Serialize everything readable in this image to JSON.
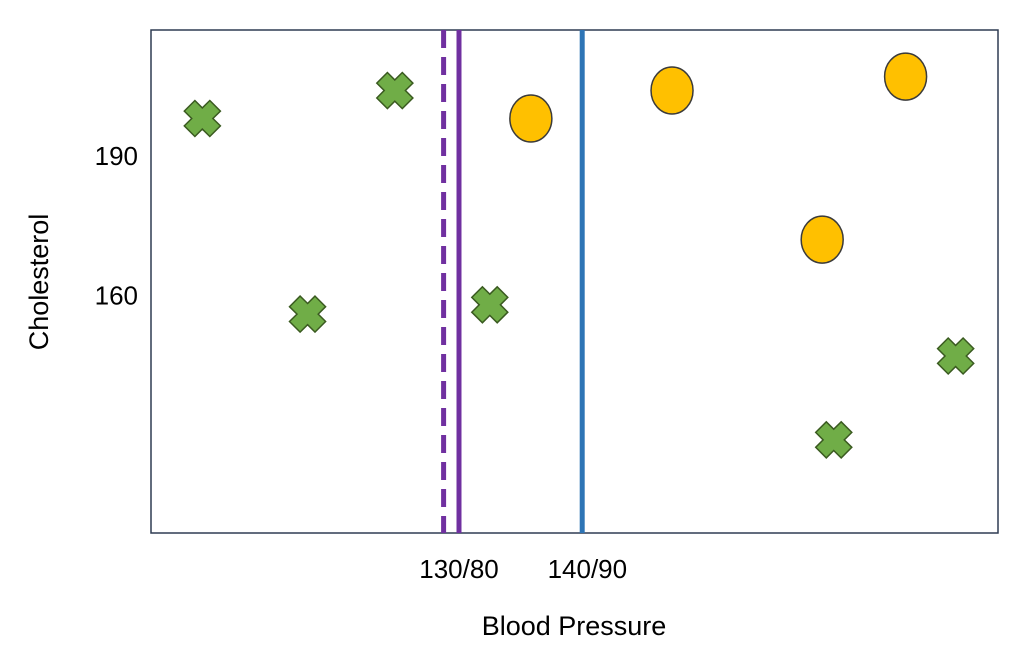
{
  "chart_data": {
    "type": "scatter",
    "title": "",
    "xlabel": "Blood Pressure",
    "ylabel": "Cholesterol",
    "x_ticks": [
      {
        "label": "130/80",
        "value": 130
      },
      {
        "label": "140/90",
        "value": 140
      }
    ],
    "y_ticks": [
      {
        "label": "190",
        "value": 190
      },
      {
        "label": "160",
        "value": 160
      }
    ],
    "xlim": [
      106,
      172
    ],
    "ylim": [
      109,
      217
    ],
    "grid": false,
    "legend": "none",
    "series": [
      {
        "marker": "cross",
        "color": "#70ad47",
        "points": [
          {
            "x": 110,
            "y": 198
          },
          {
            "x": 118.2,
            "y": 156
          },
          {
            "x": 125,
            "y": 204
          },
          {
            "x": 132.4,
            "y": 158
          },
          {
            "x": 159.2,
            "y": 129
          },
          {
            "x": 168.7,
            "y": 147
          }
        ]
      },
      {
        "marker": "circle",
        "color": "#ffc000",
        "points": [
          {
            "x": 135.6,
            "y": 198
          },
          {
            "x": 146.6,
            "y": 204
          },
          {
            "x": 158.3,
            "y": 172
          },
          {
            "x": 164.8,
            "y": 207
          }
        ]
      }
    ],
    "reference_lines": [
      {
        "x": 128.8,
        "color": "#7030a0",
        "style": "dashed"
      },
      {
        "x": 130,
        "color": "#7030a0",
        "style": "solid"
      },
      {
        "x": 139.6,
        "color": "#2e75b6",
        "style": "solid"
      }
    ]
  }
}
